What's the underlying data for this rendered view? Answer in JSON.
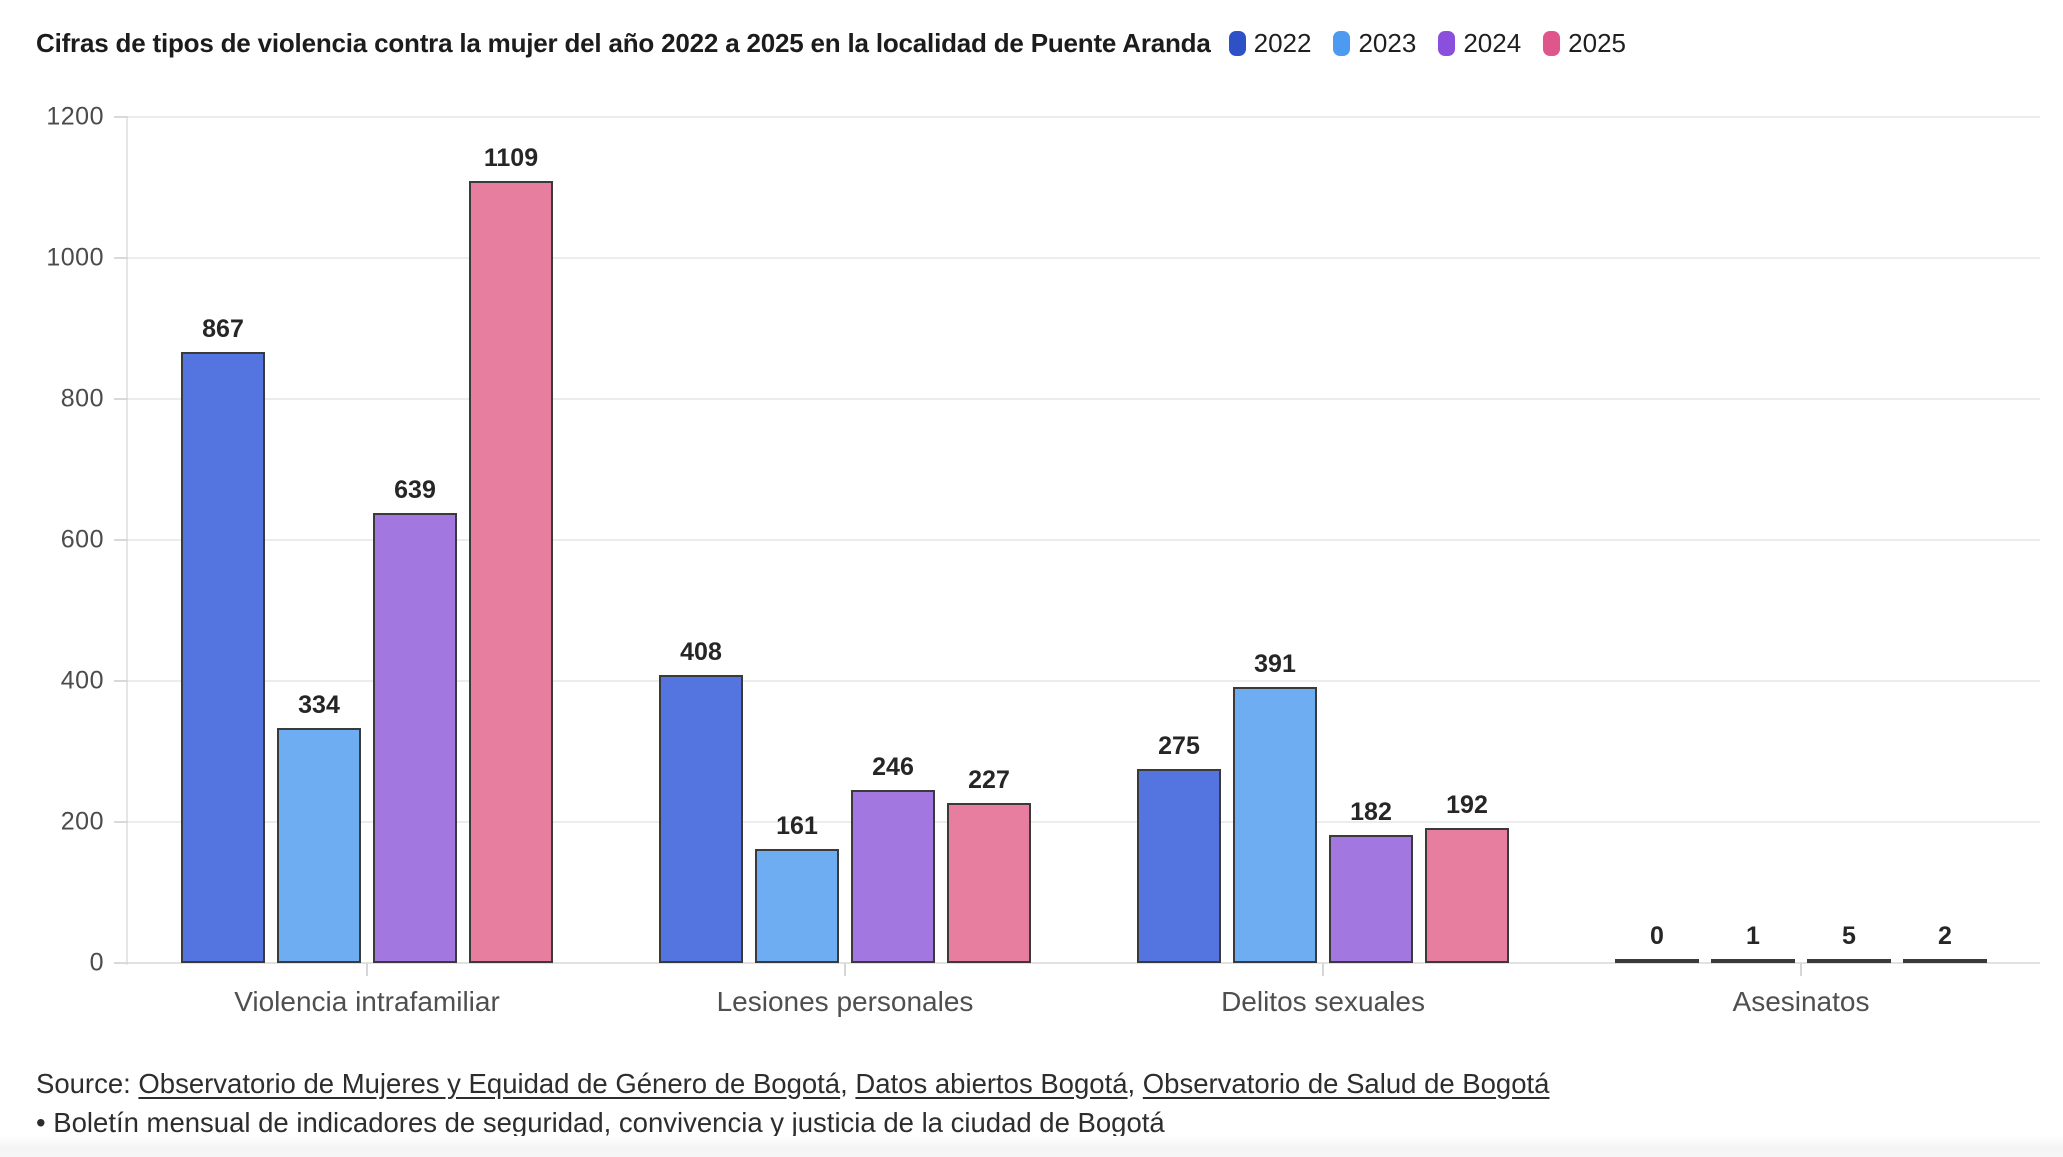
{
  "header": {
    "title": "Cifras de tipos de violencia contra la mujer del año 2022 a 2025 en la localidad de Puente Aranda"
  },
  "chart_data": {
    "type": "bar",
    "title": "Cifras de tipos de violencia contra la mujer del año 2022 a 2025 en la localidad de Puente Aranda",
    "categories": [
      "Violencia intrafamiliar",
      "Lesiones personales",
      "Delitos sexuales",
      "Asesinatos"
    ],
    "series": [
      {
        "name": "2022",
        "legend_color": "#2e51c8",
        "bar_color": "#5474df",
        "values": [
          867,
          408,
          275,
          0
        ]
      },
      {
        "name": "2023",
        "legend_color": "#4d9bf0",
        "bar_color": "#6fadf2",
        "values": [
          334,
          161,
          391,
          1
        ]
      },
      {
        "name": "2024",
        "legend_color": "#8a50dd",
        "bar_color": "#a377e0",
        "values": [
          639,
          246,
          182,
          5
        ]
      },
      {
        "name": "2025",
        "legend_color": "#e0558a",
        "bar_color": "#e77d9f",
        "values": [
          1109,
          227,
          192,
          2
        ]
      }
    ],
    "ylim": [
      0,
      1200
    ],
    "yticks": [
      0,
      200,
      400,
      600,
      800,
      1000,
      1200
    ],
    "grid": "horizontal",
    "legend_position": "top-right",
    "bar_border_color": "#3a3a3a",
    "value_labels": true
  },
  "source": {
    "segments": [
      {
        "text": "Source: ",
        "link": false
      },
      {
        "text": "Observatorio de Mujeres y Equidad de Género de Bogotá",
        "link": true
      },
      {
        "text": ", ",
        "link": false
      },
      {
        "text": "Datos abiertos Bogotá",
        "link": true
      },
      {
        "text": ", ",
        "link": false
      },
      {
        "text": "Observatorio de Salud de Bogotá",
        "link": true
      },
      {
        "text": " • ",
        "link": false
      },
      {
        "text": "Boletín mensual de indicadores de seguridad, convivencia y justicia de la ciudad de Bogotá",
        "link": true
      }
    ]
  }
}
